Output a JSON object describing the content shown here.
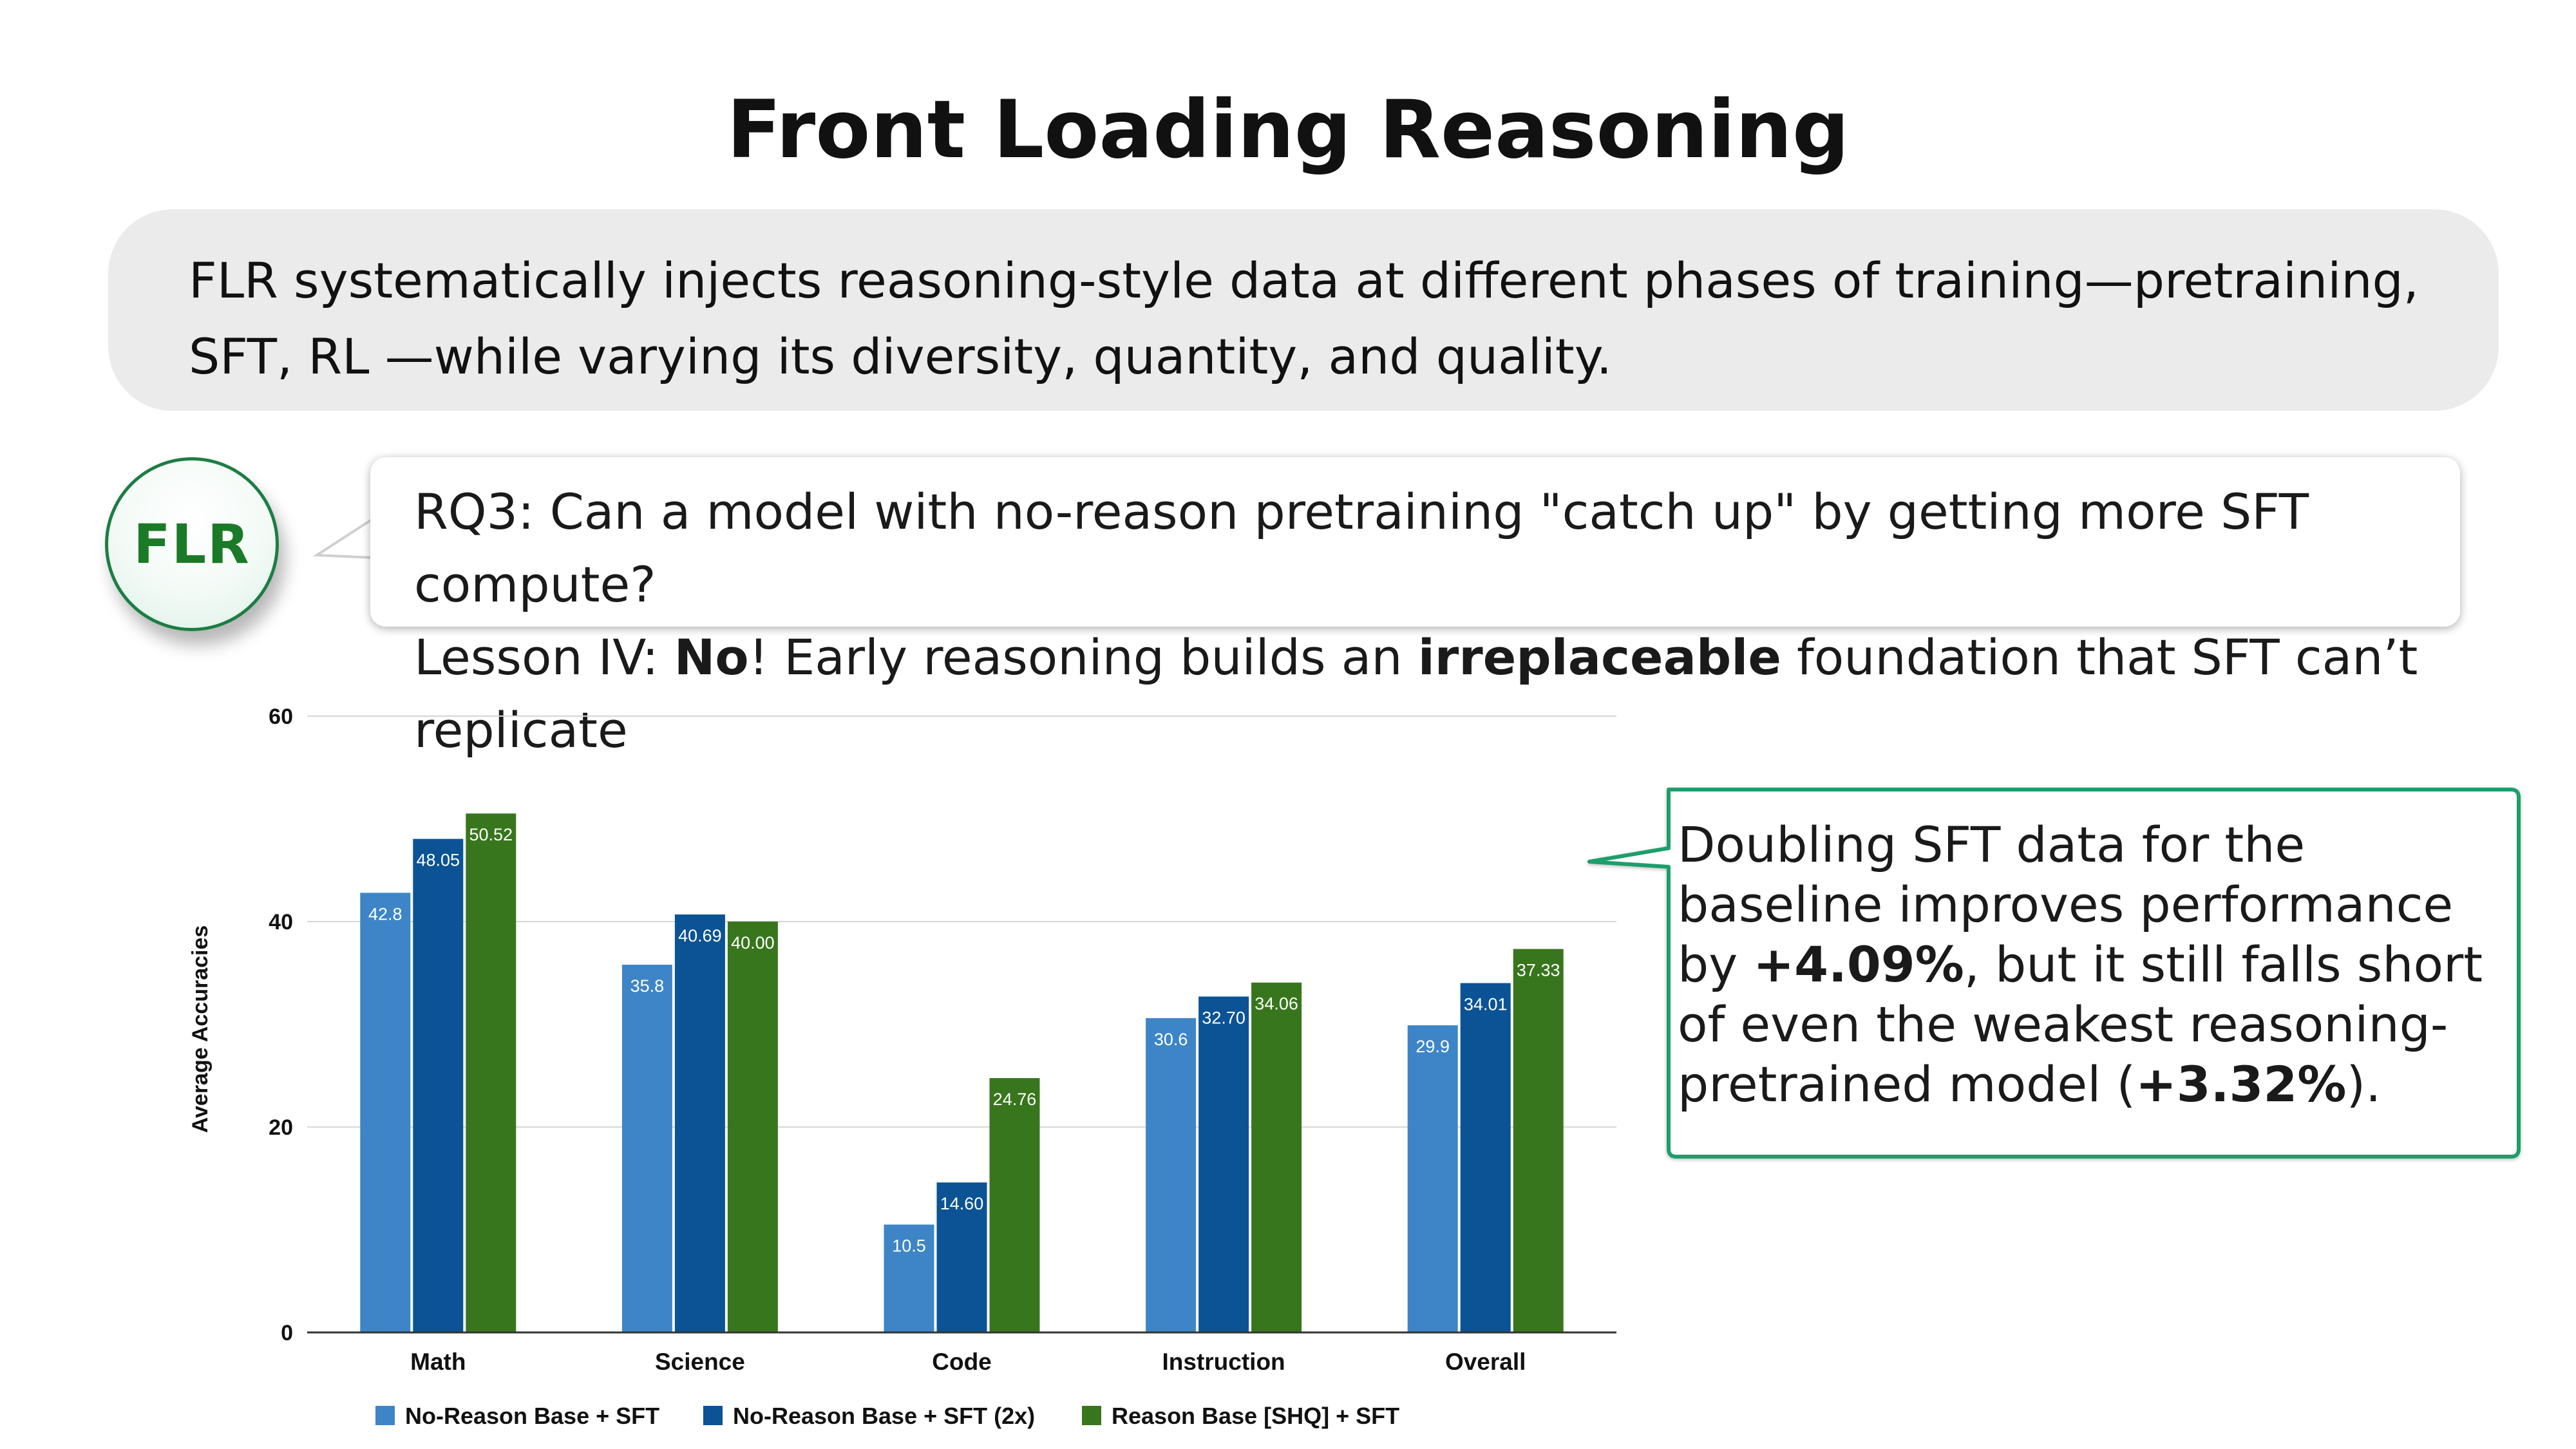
{
  "slide": {
    "title": "Front Loading Reasoning",
    "summary": "FLR systematically injects reasoning-style data at different phases of training—pretraining, SFT, RL —while varying its diversity, quantity, and quality.",
    "badge": "FLR",
    "rq_line": "RQ3: Can a model with no-reason pretraining \"catch up\" by getting more SFT compute?",
    "lesson": {
      "prefix": "Lesson IV: ",
      "no": "No",
      "mid": "! Early reasoning builds an ",
      "bold": "irreplaceable",
      "suffix": " foundation that SFT can’t replicate"
    },
    "callout": {
      "t1": "Doubling SFT data for the baseline improves performance by ",
      "b1": "+4.09%",
      "t2": ", but it still falls short of even the weakest reasoning-pretrained model (",
      "b2": "+3.32%",
      "t3": ")."
    },
    "colors": {
      "accent_green": "#1d7d43",
      "badge_text": "#1b7a27",
      "summary_bg": "#ebebeb"
    }
  },
  "chart_data": {
    "type": "bar",
    "categories": [
      "Math",
      "Science",
      "Code",
      "Instruction",
      "Overall"
    ],
    "series": [
      {
        "name": "No-Reason Base + SFT",
        "color": "#3d85c6",
        "values": [
          42.8,
          35.8,
          10.5,
          30.6,
          29.9
        ],
        "labels": [
          "42.8",
          "35.8",
          "10.5",
          "30.6",
          "29.9"
        ]
      },
      {
        "name": "No-Reason Base + SFT (2x)",
        "color": "#0b5394",
        "values": [
          48.05,
          40.69,
          14.6,
          32.7,
          34.01
        ],
        "labels": [
          "48.05",
          "40.69",
          "14.60",
          "32.70",
          "34.01"
        ]
      },
      {
        "name": "Reason Base [SHQ] + SFT",
        "color": "#38761d",
        "values": [
          50.52,
          40.0,
          24.76,
          34.06,
          37.33
        ],
        "labels": [
          "50.52",
          "40.00",
          "24.76",
          "34.06",
          "37.33"
        ]
      }
    ],
    "ylabel": "Average Accuracies",
    "xlabel": "",
    "ylim": [
      0,
      60
    ],
    "yticks": [
      0,
      20,
      40,
      60
    ],
    "grid": true,
    "legend_position": "bottom"
  }
}
